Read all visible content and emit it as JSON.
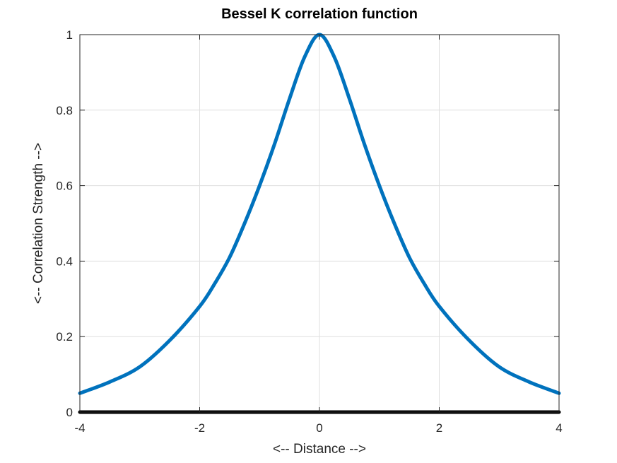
{
  "chart_data": {
    "type": "line",
    "title": "Bessel K correlation function",
    "xlabel": "<-- Distance -->",
    "ylabel": "<-- Correlation Strength -->",
    "xlim": [
      -4,
      4
    ],
    "ylim": [
      0,
      1
    ],
    "xticks": [
      -4,
      -2,
      0,
      2,
      4
    ],
    "xtick_labels": [
      "-4",
      "-2",
      "0",
      "2",
      "4"
    ],
    "yticks": [
      0,
      0.2,
      0.4,
      0.6,
      0.8,
      1
    ],
    "ytick_labels": [
      "0",
      "0.2",
      "0.4",
      "0.6",
      "0.8",
      "1"
    ],
    "grid": true,
    "series": [
      {
        "color": "#0072bd",
        "x": [
          -4,
          -3.5,
          -3,
          -2.5,
          -2,
          -1.75,
          -1.5,
          -1.25,
          -1,
          -0.75,
          -0.5,
          -0.25,
          0,
          0.25,
          0.5,
          0.75,
          1,
          1.25,
          1.5,
          1.75,
          2,
          2.5,
          3,
          3.5,
          4
        ],
        "y": [
          0.05,
          0.08,
          0.12,
          0.19,
          0.28,
          0.34,
          0.41,
          0.5,
          0.6,
          0.71,
          0.83,
          0.94,
          1.0,
          0.94,
          0.83,
          0.71,
          0.6,
          0.5,
          0.41,
          0.34,
          0.28,
          0.19,
          0.12,
          0.08,
          0.05
        ]
      },
      {
        "color": "#000000",
        "x": [
          -4,
          4
        ],
        "y": [
          0,
          0
        ]
      }
    ]
  }
}
